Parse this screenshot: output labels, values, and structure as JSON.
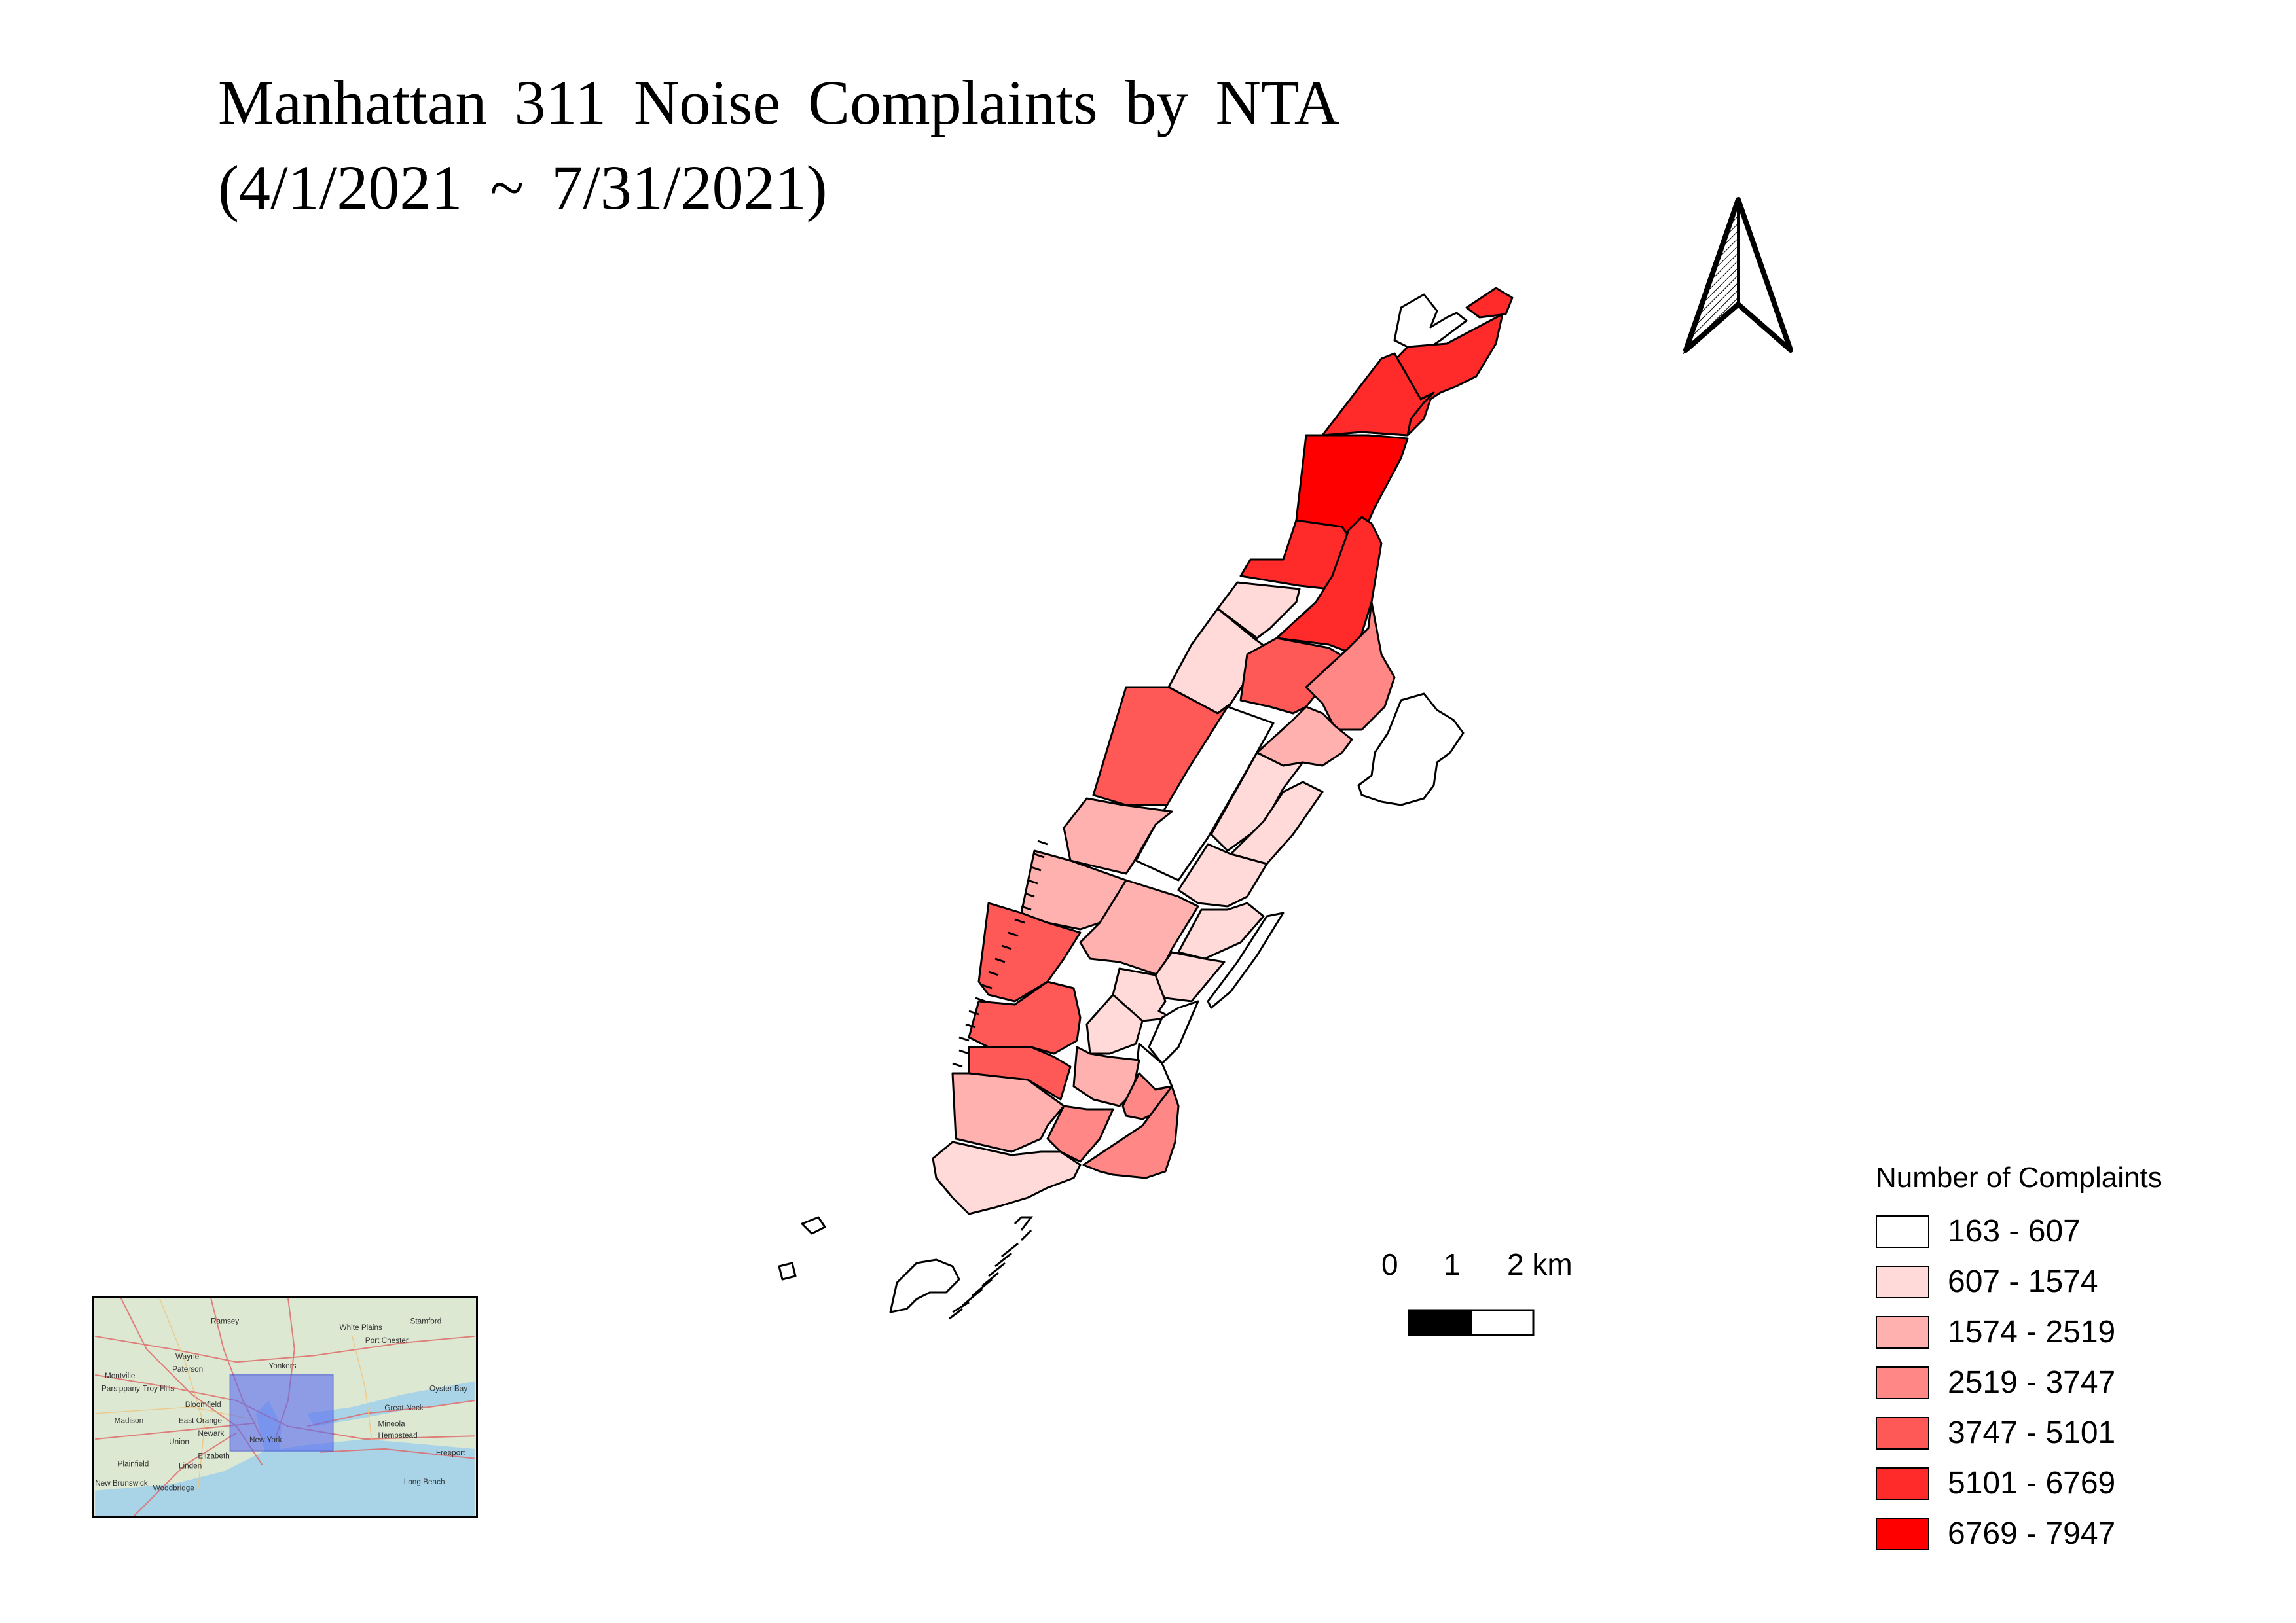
{
  "title": {
    "line1": "Manhattan 311 Noise Complaints by NTA",
    "line2": "(4/1/2021 ~ 7/31/2021)"
  },
  "legend": {
    "title": "Number of Complaints",
    "classes": [
      {
        "label": "163 - 607",
        "color": "#ffffff"
      },
      {
        "label": "607 - 1574",
        "color": "#ffdad9"
      },
      {
        "label": "1574 - 2519",
        "color": "#ffb1b0"
      },
      {
        "label": "2519 - 3747",
        "color": "#ff8886"
      },
      {
        "label": "3747 - 5101",
        "color": "#ff5957"
      },
      {
        "label": "5101 - 6769",
        "color": "#ff2b2a"
      },
      {
        "label": "6769 - 7947",
        "color": "#ff0000"
      }
    ]
  },
  "scalebar": {
    "labels": [
      "0",
      "1",
      "2 km"
    ]
  },
  "north_arrow": {
    "icon": "north-arrow-icon"
  },
  "inset": {
    "place_labels": [
      "Stamford",
      "Yonkers",
      "Paterson",
      "White Plains",
      "Port Chester",
      "Wayne",
      "Ramsey",
      "Montville",
      "Parsippany-Troy Hills",
      "Bloomfield",
      "Madison",
      "East Orange",
      "Newark",
      "Union",
      "Elizabeth",
      "Linden",
      "Plainfield",
      "New Brunswick",
      "Woodbridge",
      "Great Neck",
      "Oyster Bay",
      "Mineola",
      "Hempstead",
      "Freeport",
      "Long Beach",
      "New York"
    ]
  }
}
